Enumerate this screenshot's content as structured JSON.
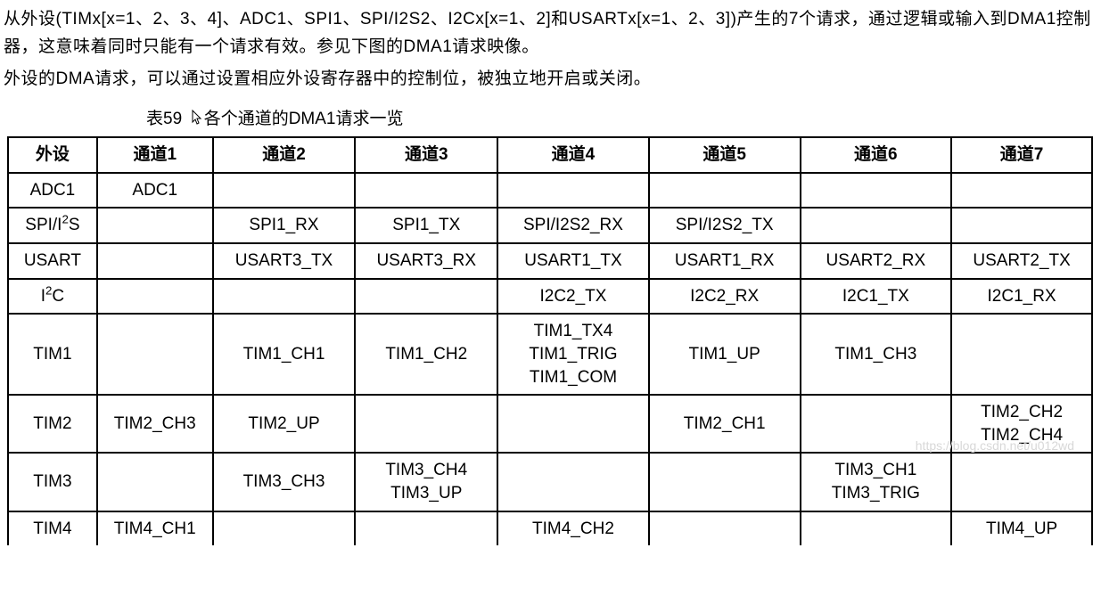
{
  "intro": {
    "p1": "从外设(TIMx[x=1、2、3、4]、ADC1、SPI1、SPI/I2S2、I2Cx[x=1、2]和USARTx[x=1、2、3])产生的7个请求，通过逻辑或输入到DMA1控制器，这意味着同时只能有一个请求有效。参见下图的DMA1请求映像。",
    "p2": "外设的DMA请求，可以通过设置相应外设寄存器中的控制位，被独立地开启或关闭。"
  },
  "caption_prefix": "表59",
  "caption_text": "各个通道的DMA1请求一览",
  "table": {
    "headers": [
      "外设",
      "通道1",
      "通道2",
      "通道3",
      "通道4",
      "通道5",
      "通道6",
      "通道7"
    ],
    "rows": [
      [
        "ADC1",
        "ADC1",
        "",
        "",
        "",
        "",
        "",
        ""
      ],
      [
        "SPI/I²S",
        "",
        "SPI1_RX",
        "SPI1_TX",
        "SPI/I2S2_RX",
        "SPI/I2S2_TX",
        "",
        ""
      ],
      [
        "USART",
        "",
        "USART3_TX",
        "USART3_RX",
        "USART1_TX",
        "USART1_RX",
        "USART2_RX",
        "USART2_TX"
      ],
      [
        "I²C",
        "",
        "",
        "",
        "I2C2_TX",
        "I2C2_RX",
        "I2C1_TX",
        "I2C1_RX"
      ],
      [
        "TIM1",
        "",
        "TIM1_CH1",
        "TIM1_CH2",
        "TIM1_TX4\nTIM1_TRIG\nTIM1_COM",
        "TIM1_UP",
        "TIM1_CH3",
        ""
      ],
      [
        "TIM2",
        "TIM2_CH3",
        "TIM2_UP",
        "",
        "",
        "TIM2_CH1",
        "",
        "TIM2_CH2\nTIM2_CH4"
      ],
      [
        "TIM3",
        "",
        "TIM3_CH3",
        "TIM3_CH4\nTIM3_UP",
        "",
        "",
        "TIM3_CH1\nTIM3_TRIG",
        ""
      ],
      [
        "TIM4",
        "TIM4_CH1",
        "",
        "",
        "TIM4_CH2",
        "",
        "",
        "TIM4_UP"
      ]
    ]
  },
  "watermark": "https://blog.csdn.net/u012wd",
  "colors": {
    "text": "#000000",
    "background": "#ffffff",
    "border": "#000000",
    "watermark": "#d8d8d8"
  }
}
